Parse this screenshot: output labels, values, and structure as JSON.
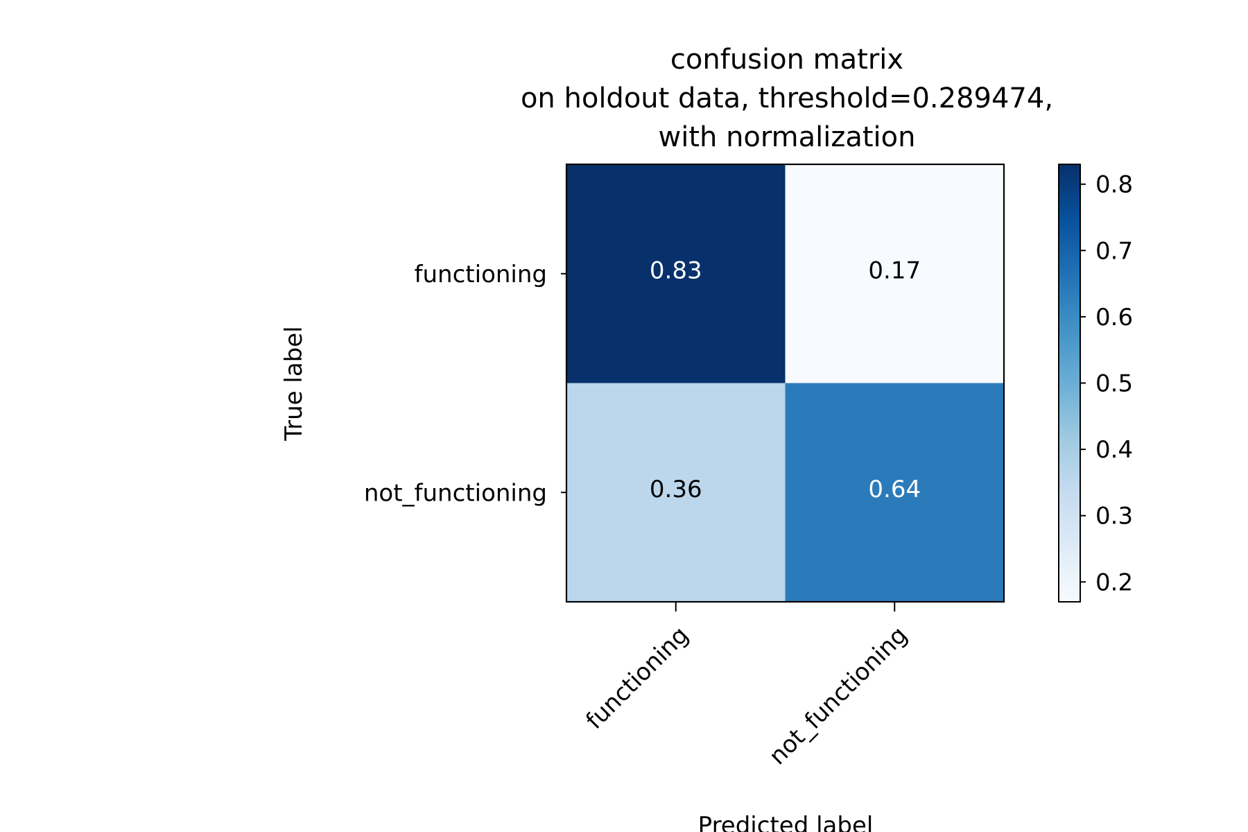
{
  "chart_data": {
    "type": "heatmap",
    "title": [
      "confusion matrix",
      "on holdout data, threshold=0.289474,",
      "with normalization"
    ],
    "xlabel": "Predicted label",
    "ylabel": "True label",
    "x_categories": [
      "functioning",
      "not_functioning"
    ],
    "y_categories": [
      "functioning",
      "not_functioning"
    ],
    "values": [
      [
        0.83,
        0.17
      ],
      [
        0.36,
        0.64
      ]
    ],
    "cell_labels": [
      [
        "0.83",
        "0.17"
      ],
      [
        "0.36",
        "0.64"
      ]
    ],
    "colormap": "Blues",
    "colorbar": {
      "range": [
        0.17,
        0.83
      ],
      "ticks": [
        0.2,
        0.3,
        0.4,
        0.5,
        0.6,
        0.7,
        0.8
      ],
      "tick_labels": [
        "0.2",
        "0.3",
        "0.4",
        "0.5",
        "0.6",
        "0.7",
        "0.8"
      ]
    },
    "colors": {
      "cell_0_0": "#08306b",
      "cell_0_1": "#f7fbff",
      "cell_1_0": "#bcd7eb",
      "cell_1_1": "#2b7bba",
      "text_dark": "#000000",
      "text_light": "#ffffff"
    },
    "grid": false
  }
}
